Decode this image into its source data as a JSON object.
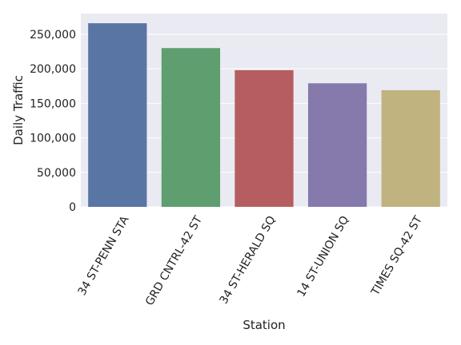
{
  "chart_data": {
    "type": "bar",
    "xlabel": "Station",
    "ylabel": "Daily Traffic",
    "categories": [
      "34 ST-PENN STA",
      "GRD CNTRL-42 ST",
      "34 ST-HERALD SQ",
      "14 ST-UNION SQ",
      "TIMES SQ-42 ST"
    ],
    "values": [
      266000,
      230000,
      198000,
      179000,
      169000
    ],
    "ylim": [
      0,
      280000
    ],
    "yticks": [
      0,
      50000,
      100000,
      150000,
      200000,
      250000
    ],
    "ytick_labels": [
      "0",
      "50,000",
      "100,000",
      "150,000",
      "200,000",
      "250,000"
    ],
    "bar_colors": [
      "#5975a4",
      "#5f9e6e",
      "#b55d60",
      "#857aab",
      "#c1b37f"
    ],
    "background": "#eaeaf2",
    "gridlines": true,
    "legend": false
  }
}
